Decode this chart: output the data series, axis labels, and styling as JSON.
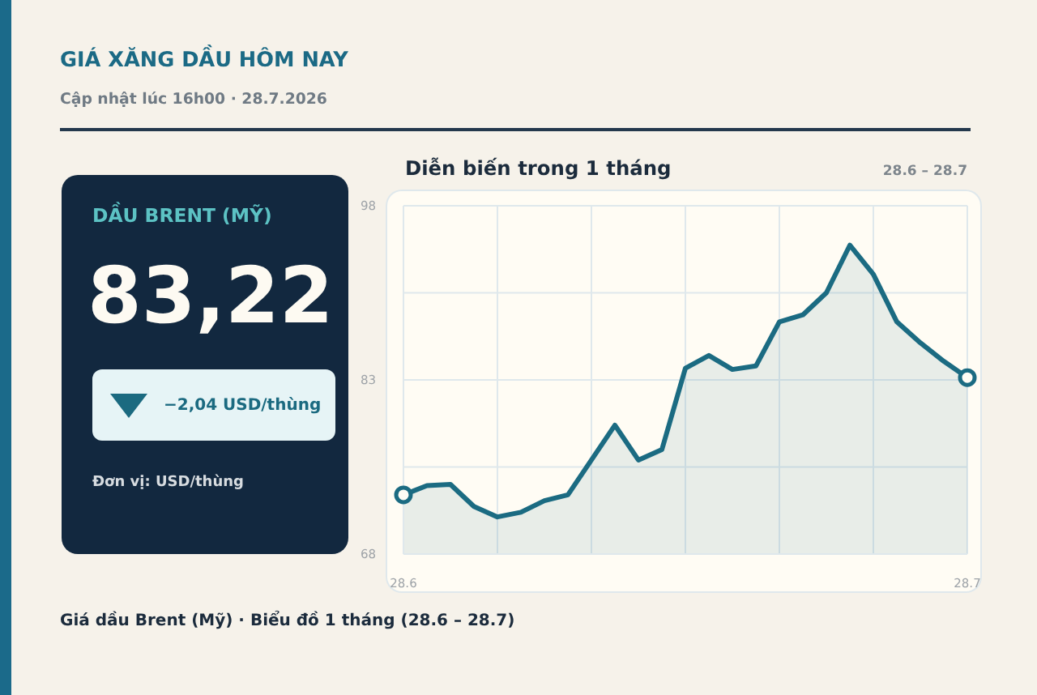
{
  "chart_data": {
    "type": "area",
    "title": "GIÁ XĂNG DẦU HÔM NAY",
    "subtitle": "Cập nhật lúc 16h00 · 28.7.2026",
    "annotations": [
      "DẦU BRENT (MỸ)",
      "83,22",
      "−2,04 USD/thùng",
      "Đơn vị: USD/thùng",
      "Diễn biến trong 1 tháng",
      "28.6 – 28.7",
      "Giá dầu Brent (Mỹ) · Biểu đồ 1 tháng (28.6 – 28.7)"
    ],
    "categories": [
      "28.6",
      null,
      null,
      null,
      null,
      null,
      null,
      null,
      null,
      null,
      null,
      null,
      null,
      null,
      null,
      null,
      null,
      null,
      null,
      null,
      null,
      null,
      null,
      null,
      "28.7"
    ],
    "series": [
      {
        "color": "#1b6b82",
        "values": [
          73.1,
          73.9,
          74.0,
          72.1,
          71.2,
          71.6,
          72.6,
          73.1,
          76.1,
          79.1,
          76.1,
          77.0,
          84.0,
          85.1,
          83.9,
          84.2,
          88.0,
          88.6,
          90.5,
          94.6,
          92.1,
          88.0,
          86.2,
          84.6,
          83.2
        ]
      },
      {
        "type": "scatter",
        "color": "#1b6b82",
        "marker": "circle",
        "x": [
          "28.6",
          "28.7"
        ],
        "values": [
          73.1,
          83.2
        ]
      }
    ],
    "ylim": [
      68,
      98
    ],
    "yticks": [
      68,
      {
        "value": 75.5,
        "label": null
      },
      83,
      {
        "value": 90.5,
        "label": null
      },
      98
    ],
    "grid": true
  }
}
